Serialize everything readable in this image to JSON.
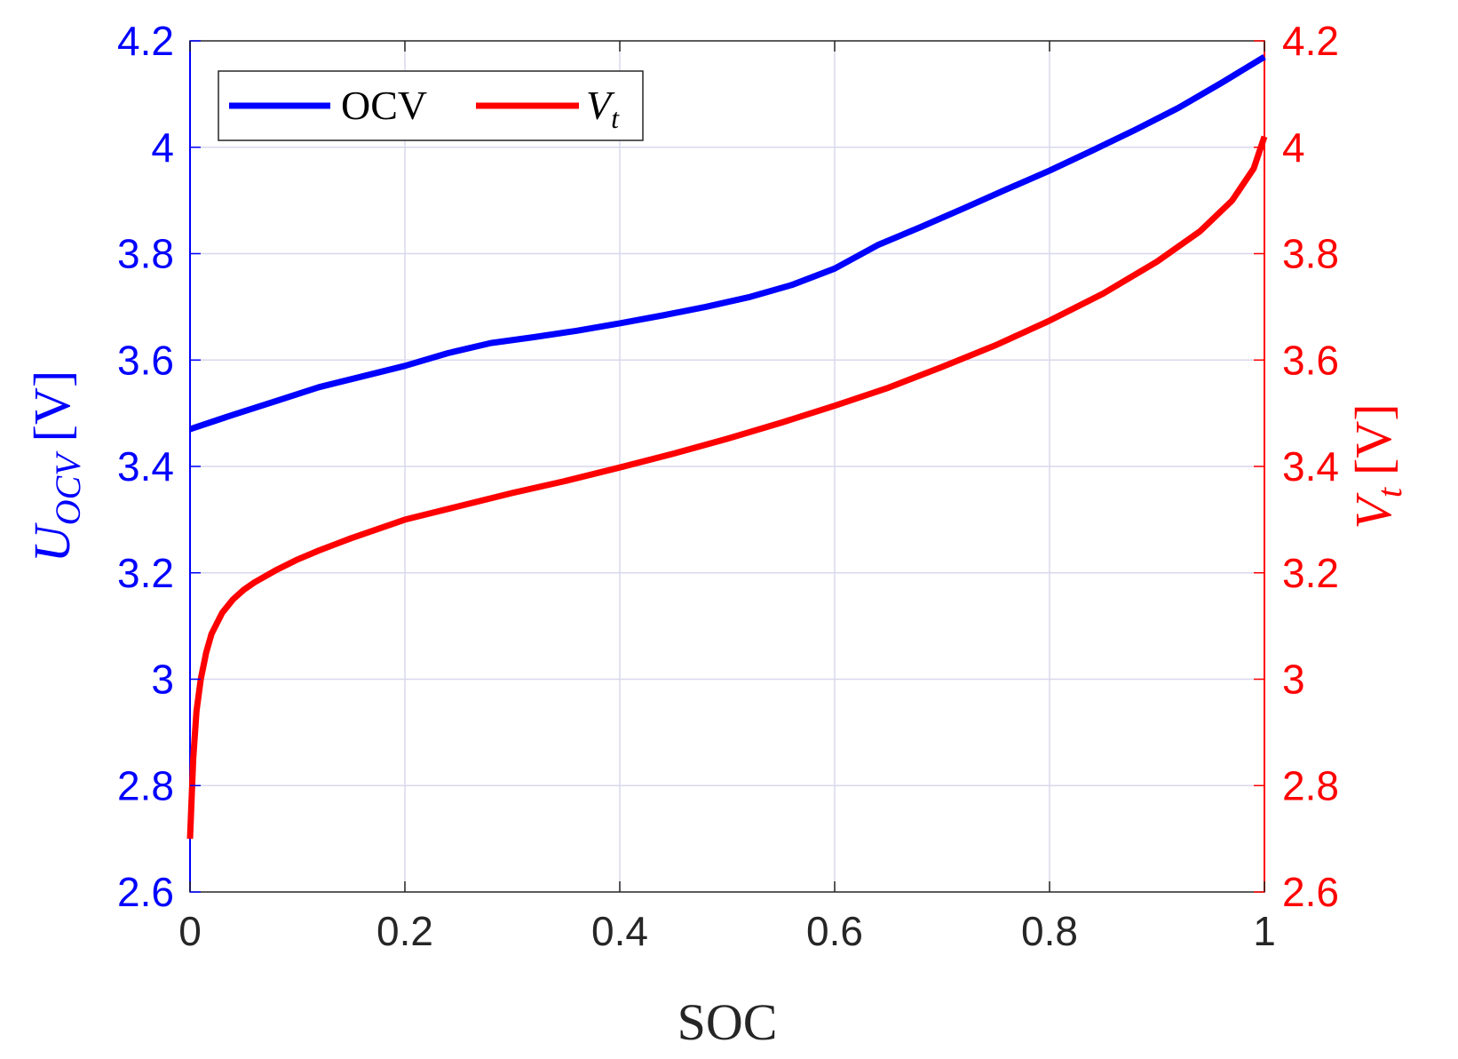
{
  "chart_data": {
    "type": "line",
    "x_label": "SOC",
    "y_left_label": {
      "main": "U",
      "sub": "OCV",
      "unit": "[V]"
    },
    "y_right_label": {
      "main": "V",
      "sub": "t",
      "unit": "[V]"
    },
    "xlim": [
      0,
      1
    ],
    "ylim_left": [
      2.6,
      4.2
    ],
    "ylim_right": [
      2.6,
      4.2
    ],
    "x_ticks": [
      0,
      0.2,
      0.4,
      0.6,
      0.8,
      1
    ],
    "x_tick_labels": [
      "0",
      "0.2",
      "0.4",
      "0.6",
      "0.8",
      "1"
    ],
    "y_ticks": [
      2.6,
      2.8,
      3,
      3.2,
      3.4,
      3.6,
      3.8,
      4,
      4.2
    ],
    "y_tick_labels": [
      "2.6",
      "2.8",
      "3",
      "3.2",
      "3.4",
      "3.6",
      "3.8",
      "4",
      "4.2"
    ],
    "grid": true,
    "legend_position": "top-left",
    "colors": {
      "ocv": "#0000ff",
      "vt": "#ff0000",
      "grid": "#d8d8ec",
      "axis": "#262626"
    },
    "series": [
      {
        "name": "OCV",
        "legend_label": "OCV",
        "axis": "left",
        "color": "#0000ff",
        "x": [
          0,
          0.04,
          0.08,
          0.12,
          0.16,
          0.2,
          0.24,
          0.28,
          0.32,
          0.36,
          0.4,
          0.44,
          0.48,
          0.52,
          0.56,
          0.6,
          0.64,
          0.68,
          0.72,
          0.76,
          0.8,
          0.84,
          0.88,
          0.92,
          0.96,
          1.0
        ],
        "y": [
          3.47,
          3.497,
          3.523,
          3.549,
          3.569,
          3.589,
          3.613,
          3.632,
          3.643,
          3.655,
          3.669,
          3.684,
          3.7,
          3.718,
          3.741,
          3.772,
          3.816,
          3.85,
          3.885,
          3.921,
          3.956,
          3.994,
          4.033,
          4.074,
          4.121,
          4.17
        ]
      },
      {
        "name": "Vt",
        "legend_label": "V",
        "legend_sub": "t",
        "axis": "right",
        "color": "#ff0000",
        "x": [
          0,
          0.003,
          0.006,
          0.01,
          0.015,
          0.02,
          0.03,
          0.04,
          0.05,
          0.06,
          0.08,
          0.1,
          0.12,
          0.15,
          0.2,
          0.25,
          0.3,
          0.35,
          0.4,
          0.45,
          0.5,
          0.55,
          0.6,
          0.65,
          0.7,
          0.75,
          0.8,
          0.85,
          0.9,
          0.94,
          0.97,
          0.99,
          1.0
        ],
        "y": [
          2.7,
          2.85,
          2.94,
          3.0,
          3.05,
          3.085,
          3.125,
          3.15,
          3.168,
          3.182,
          3.205,
          3.225,
          3.242,
          3.265,
          3.3,
          3.325,
          3.35,
          3.373,
          3.398,
          3.424,
          3.452,
          3.482,
          3.514,
          3.548,
          3.587,
          3.628,
          3.674,
          3.725,
          3.785,
          3.842,
          3.9,
          3.96,
          4.02
        ]
      }
    ]
  }
}
